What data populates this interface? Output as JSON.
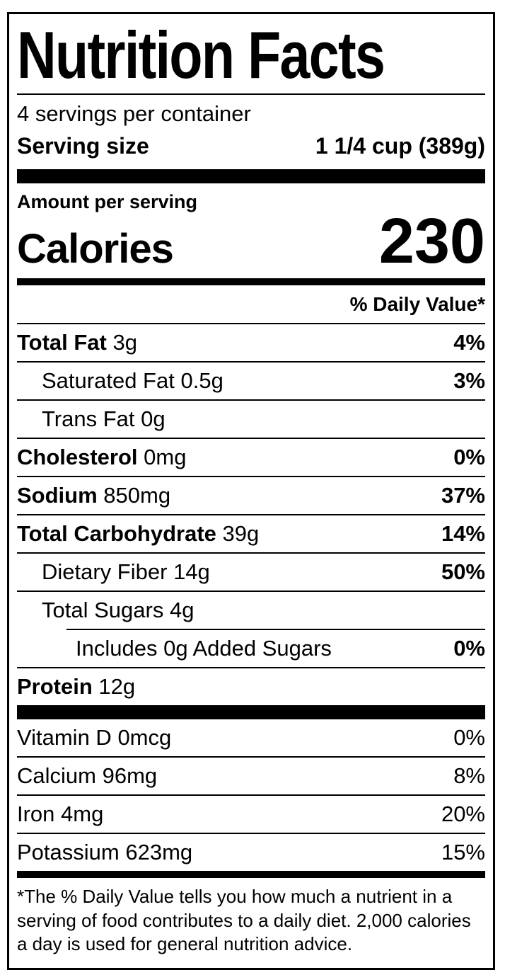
{
  "colors": {
    "text": "#000000",
    "background": "#ffffff",
    "rule": "#000000"
  },
  "label": {
    "title": "Nutrition Facts",
    "servings_per_container": "4 servings per container",
    "serving_size": {
      "label": "Serving size",
      "value": "1 1/4 cup (389g)"
    },
    "amount_per_serving": "Amount per serving",
    "calories": {
      "label": "Calories",
      "value": "230"
    },
    "daily_value_header": "% Daily Value*",
    "nutrients": [
      {
        "name": "Total Fat",
        "amount": "3g",
        "dv": "4%"
      },
      {
        "name": "Saturated Fat",
        "amount": "0.5g",
        "dv": "3%"
      },
      {
        "name": "Trans Fat",
        "amount": "0g",
        "dv": ""
      },
      {
        "name": "Cholesterol",
        "amount": "0mg",
        "dv": "0%"
      },
      {
        "name": "Sodium",
        "amount": "850mg",
        "dv": "37%"
      },
      {
        "name": "Total Carbohydrate",
        "amount": "39g",
        "dv": "14%"
      },
      {
        "name": "Dietary Fiber",
        "amount": "14g",
        "dv": "50%"
      },
      {
        "name": "Total Sugars",
        "amount": "4g",
        "dv": ""
      },
      {
        "name": "Includes 0g Added Sugars",
        "amount": "",
        "dv": "0%"
      },
      {
        "name": "Protein",
        "amount": "12g",
        "dv": ""
      }
    ],
    "vitamins": [
      {
        "name": "Vitamin D",
        "amount": "0mcg",
        "dv": "0%"
      },
      {
        "name": "Calcium",
        "amount": "96mg",
        "dv": "8%"
      },
      {
        "name": "Iron",
        "amount": "4mg",
        "dv": "20%"
      },
      {
        "name": "Potassium",
        "amount": "623mg",
        "dv": "15%"
      }
    ],
    "footnote": "*The % Daily Value tells you how much a nutrient in a serving of food contributes to a daily diet. 2,000 calories a day is used for general nutrition advice."
  }
}
